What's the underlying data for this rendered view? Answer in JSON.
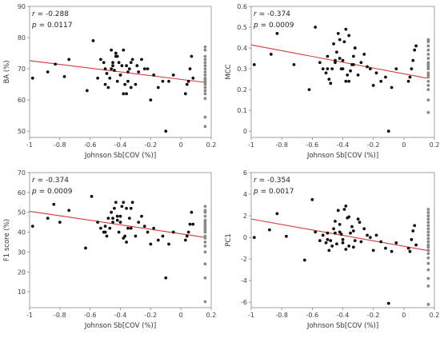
{
  "chart_data": [
    {
      "type": "scatter",
      "xlabel": "Johnson Sb[COV (%)]",
      "ylabel": "BA (%)",
      "xlim": [
        -1,
        0.2
      ],
      "ylim": [
        48,
        90
      ],
      "xticks": [
        -1,
        -0.8,
        -0.6,
        -0.4,
        -0.2,
        0,
        0.2
      ],
      "xtick_labels": [
        "-1",
        "-0.8",
        "-0.6",
        "-0.4",
        "-0.2",
        "0",
        "0.2"
      ],
      "yticks": [
        50,
        60,
        70,
        80,
        90
      ],
      "ytick_labels": [
        "50",
        "60",
        "70",
        "80",
        "90"
      ],
      "stats": {
        "r_label": "r",
        "r_value": "= -0.288",
        "p_label": "p",
        "p_value": "= 0.0117"
      },
      "fit": {
        "x": [
          -1,
          0.15
        ],
        "y": [
          72.6,
          65.7
        ],
        "color": "#d43a3a"
      },
      "series": [
        {
          "color": "#111111",
          "x": [
            -0.98,
            -0.88,
            -0.83,
            -0.77,
            -0.74,
            -0.62,
            -0.58,
            -0.55,
            -0.53,
            -0.51,
            -0.5,
            -0.49,
            -0.48,
            -0.47,
            -0.46,
            -0.45,
            -0.44,
            -0.43,
            -0.42,
            -0.41,
            -0.4,
            -0.39,
            -0.38,
            -0.37,
            -0.36,
            -0.35,
            -0.34,
            -0.33,
            -0.32,
            -0.3,
            -0.28,
            -0.26,
            -0.24,
            -0.22,
            -0.2,
            -0.18,
            -0.15,
            -0.12,
            -0.1,
            -0.08,
            -0.05,
            0.03,
            0.04,
            0.05,
            0.06,
            0.07,
            0.08,
            -0.45,
            -0.38,
            -0.4,
            -0.36,
            -0.42,
            -0.5,
            -0.33,
            -0.29,
            -0.43,
            -0.46,
            -0.35
          ],
          "y": [
            67,
            69,
            71.5,
            67.5,
            73,
            63,
            79,
            67,
            73,
            72,
            70,
            68.5,
            64,
            67,
            70,
            71,
            69.5,
            75,
            74,
            72,
            68,
            71,
            76,
            65,
            62,
            66,
            70,
            72,
            73,
            65,
            69,
            73,
            70,
            70,
            60,
            68,
            64,
            66,
            50,
            66,
            68,
            62,
            65,
            66,
            70,
            74,
            67,
            72,
            62,
            68,
            71,
            66,
            65,
            64,
            71,
            74,
            76,
            69
          ]
        },
        {
          "color": "#888888",
          "x": [
            0.16,
            0.16,
            0.16,
            0.16,
            0.16,
            0.16,
            0.16,
            0.16,
            0.16,
            0.16,
            0.16,
            0.16,
            0.16,
            0.16,
            0.16,
            0.16,
            0.16,
            0.16,
            0.16,
            0.16
          ],
          "y": [
            51.5,
            54.5,
            60.5,
            62,
            63,
            64,
            65,
            65.5,
            66,
            66.5,
            67,
            68,
            69,
            70,
            71,
            72,
            73,
            74,
            76,
            77
          ]
        }
      ]
    },
    {
      "type": "scatter",
      "xlabel": "Johnson Sb[COV (%)]",
      "ylabel": "MCC",
      "xlim": [
        -1,
        0.2
      ],
      "ylim": [
        -0.03,
        0.6
      ],
      "xticks": [
        -1,
        -0.8,
        -0.6,
        -0.4,
        -0.2,
        0,
        0.2
      ],
      "xtick_labels": [
        "-1",
        "-0.8",
        "-0.6",
        "-0.4",
        "-0.2",
        "0",
        "0.2"
      ],
      "yticks": [
        0,
        0.1,
        0.2,
        0.3,
        0.4,
        0.5,
        0.6
      ],
      "ytick_labels": [
        "0",
        "0.1",
        "0.2",
        "0.3",
        "0.4",
        "0.5",
        "0.6"
      ],
      "stats": {
        "r_label": "r",
        "r_value": "= -0.374",
        "p_label": "p",
        "p_value": "= 0.0009"
      },
      "fit": {
        "x": [
          -1,
          0.15
        ],
        "y": [
          0.415,
          0.255
        ],
        "color": "#d43a3a"
      },
      "series": [
        {
          "color": "#111111",
          "x": [
            -0.98,
            -0.87,
            -0.83,
            -0.72,
            -0.62,
            -0.58,
            -0.55,
            -0.53,
            -0.51,
            -0.5,
            -0.49,
            -0.48,
            -0.47,
            -0.46,
            -0.45,
            -0.44,
            -0.43,
            -0.42,
            -0.41,
            -0.4,
            -0.39,
            -0.38,
            -0.37,
            -0.36,
            -0.35,
            -0.34,
            -0.33,
            -0.32,
            -0.3,
            -0.28,
            -0.26,
            -0.24,
            -0.22,
            -0.2,
            -0.18,
            -0.15,
            -0.12,
            -0.1,
            -0.08,
            -0.05,
            0.03,
            0.04,
            0.05,
            0.06,
            0.07,
            0.08,
            -0.45,
            -0.38,
            -0.4,
            -0.36,
            -0.42,
            -0.5,
            -0.33
          ],
          "y": [
            0.32,
            0.37,
            0.47,
            0.32,
            0.2,
            0.5,
            0.33,
            0.3,
            0.28,
            0.36,
            0.25,
            0.23,
            0.3,
            0.42,
            0.34,
            0.38,
            0.47,
            0.44,
            0.3,
            0.34,
            0.43,
            0.49,
            0.27,
            0.24,
            0.29,
            0.32,
            0.36,
            0.4,
            0.27,
            0.33,
            0.37,
            0.31,
            0.3,
            0.22,
            0.28,
            0.24,
            0.26,
            0.0,
            0.21,
            0.3,
            0.24,
            0.26,
            0.3,
            0.34,
            0.39,
            0.41,
            0.33,
            0.24,
            0.3,
            0.46,
            0.35,
            0.3,
            0.32
          ]
        },
        {
          "color": "#888888",
          "x": [
            0.16,
            0.16,
            0.16,
            0.16,
            0.16,
            0.16,
            0.16,
            0.16,
            0.16,
            0.16,
            0.16,
            0.16,
            0.16,
            0.16,
            0.16,
            0.16,
            0.16,
            0.16
          ],
          "y": [
            0.09,
            0.15,
            0.2,
            0.22,
            0.24,
            0.26,
            0.27,
            0.28,
            0.3,
            0.31,
            0.32,
            0.33,
            0.35,
            0.37,
            0.39,
            0.41,
            0.43,
            0.44
          ]
        }
      ]
    },
    {
      "type": "scatter",
      "xlabel": "Johnson Sb[COV (%)]",
      "ylabel": "F1 score (%)",
      "xlim": [
        -1,
        0.2
      ],
      "ylim": [
        2,
        70
      ],
      "xticks": [
        -1,
        -0.8,
        -0.6,
        -0.4,
        -0.2,
        0,
        0.2
      ],
      "xtick_labels": [
        "-1",
        "-0.8",
        "-0.6",
        "-0.4",
        "-0.2",
        "0",
        "0.2"
      ],
      "yticks": [
        10,
        20,
        30,
        40,
        50,
        60,
        70
      ],
      "ytick_labels": [
        "10",
        "20",
        "30",
        "40",
        "50",
        "60",
        "70"
      ],
      "stats": {
        "r_label": "r",
        "r_value": "= -0.374",
        "p_label": "p",
        "p_value": "= 0.0009"
      },
      "fit": {
        "x": [
          -1,
          0.15
        ],
        "y": [
          50.5,
          37.5
        ],
        "color": "#d43a3a"
      },
      "series": [
        {
          "color": "#111111",
          "x": [
            -0.98,
            -0.88,
            -0.84,
            -0.8,
            -0.74,
            -0.63,
            -0.59,
            -0.55,
            -0.53,
            -0.51,
            -0.5,
            -0.49,
            -0.48,
            -0.47,
            -0.46,
            -0.45,
            -0.44,
            -0.43,
            -0.42,
            -0.41,
            -0.4,
            -0.39,
            -0.38,
            -0.37,
            -0.36,
            -0.35,
            -0.34,
            -0.33,
            -0.32,
            -0.3,
            -0.28,
            -0.26,
            -0.24,
            -0.22,
            -0.2,
            -0.18,
            -0.15,
            -0.12,
            -0.1,
            -0.08,
            -0.05,
            0.03,
            0.04,
            0.05,
            0.06,
            0.07,
            0.08,
            -0.45,
            -0.38,
            -0.4,
            -0.36,
            -0.42,
            -0.5,
            -0.33
          ],
          "y": [
            43,
            47,
            54,
            45,
            51,
            32,
            58,
            45,
            42,
            40,
            43,
            38,
            47,
            42,
            50,
            45,
            52,
            55,
            48,
            40,
            45,
            53,
            55,
            38,
            35,
            42,
            47,
            52,
            55,
            38,
            45,
            48,
            43,
            40,
            34,
            42,
            36,
            38,
            17,
            34,
            40,
            36,
            38,
            40,
            44,
            50,
            44,
            47,
            37,
            48,
            52,
            46,
            40,
            42
          ]
        },
        {
          "color": "#888888",
          "x": [
            0.16,
            0.16,
            0.16,
            0.16,
            0.16,
            0.16,
            0.16,
            0.16,
            0.16,
            0.16,
            0.16,
            0.16,
            0.16,
            0.16,
            0.16,
            0.16,
            0.16,
            0.16,
            0.16
          ],
          "y": [
            5,
            17,
            24,
            30,
            33,
            35,
            37,
            38,
            40,
            41,
            42,
            43,
            44,
            45,
            46,
            48,
            50,
            51,
            53
          ]
        }
      ]
    },
    {
      "type": "scatter",
      "xlabel": "Johnson Sb[COV (%)]",
      "ylabel": "PC1",
      "xlim": [
        -1,
        0.2
      ],
      "ylim": [
        -6.5,
        6
      ],
      "xticks": [
        -1,
        -0.8,
        -0.6,
        -0.4,
        -0.2,
        0,
        0.2
      ],
      "xtick_labels": [
        "-1",
        "-0.8",
        "-0.6",
        "-0.4",
        "-0.2",
        "0",
        "0.2"
      ],
      "yticks": [
        -6,
        -4,
        -2,
        0,
        2,
        4,
        6
      ],
      "ytick_labels": [
        "-6",
        "-4",
        "-2",
        "0",
        "2",
        "4",
        "6"
      ],
      "stats": {
        "r_label": "r",
        "r_value": "= -0.354",
        "p_label": "p",
        "p_value": "= 0.0017"
      },
      "fit": {
        "x": [
          -1,
          0.15
        ],
        "y": [
          1.7,
          -1.2
        ],
        "color": "#d43a3a"
      },
      "series": [
        {
          "color": "#111111",
          "x": [
            -0.98,
            -0.88,
            -0.83,
            -0.77,
            -0.65,
            -0.6,
            -0.58,
            -0.55,
            -0.53,
            -0.51,
            -0.5,
            -0.49,
            -0.48,
            -0.47,
            -0.46,
            -0.45,
            -0.44,
            -0.43,
            -0.42,
            -0.41,
            -0.4,
            -0.39,
            -0.38,
            -0.37,
            -0.36,
            -0.35,
            -0.34,
            -0.33,
            -0.32,
            -0.3,
            -0.28,
            -0.26,
            -0.24,
            -0.22,
            -0.2,
            -0.18,
            -0.15,
            -0.12,
            -0.1,
            -0.08,
            -0.05,
            0.03,
            0.04,
            0.05,
            0.06,
            0.07,
            0.08,
            -0.45,
            -0.38,
            -0.4,
            -0.36,
            -0.42,
            -0.5,
            -0.33,
            -0.29
          ],
          "y": [
            0,
            0.7,
            2.2,
            0.1,
            -2.1,
            3.5,
            0.5,
            -0.3,
            0.2,
            -0.5,
            0.4,
            -1.2,
            -0.3,
            -0.8,
            0.8,
            1.5,
            -0.6,
            2.5,
            1.2,
            0.3,
            -0.2,
            2.6,
            2.9,
            1.8,
            -0.8,
            0.4,
            1.0,
            0.6,
            -0.3,
            1.7,
            -0.4,
            0.8,
            0.2,
            0.0,
            -1.2,
            0.2,
            -0.4,
            -1.0,
            -6.1,
            -1.3,
            -0.5,
            -1.0,
            -1.3,
            -0.2,
            0.6,
            1.1,
            -0.7,
            0.4,
            -1.1,
            -0.5,
            1.9,
            0.5,
            -0.2,
            -0.9,
            1.4
          ]
        },
        {
          "color": "#888888",
          "x": [
            0.16,
            0.16,
            0.16,
            0.16,
            0.16,
            0.16,
            0.16,
            0.16,
            0.16,
            0.16,
            0.16,
            0.16,
            0.16,
            0.16,
            0.16,
            0.16,
            0.16,
            0.16,
            0.16,
            0.16,
            0.16
          ],
          "y": [
            -6.2,
            -4.5,
            -3.8,
            -3,
            -2.4,
            -1.9,
            -1.5,
            -1.2,
            -0.9,
            -0.7,
            -0.4,
            -0.1,
            0.2,
            0.5,
            0.8,
            1.1,
            1.4,
            1.7,
            2.0,
            2.3,
            2.6
          ]
        }
      ]
    }
  ]
}
